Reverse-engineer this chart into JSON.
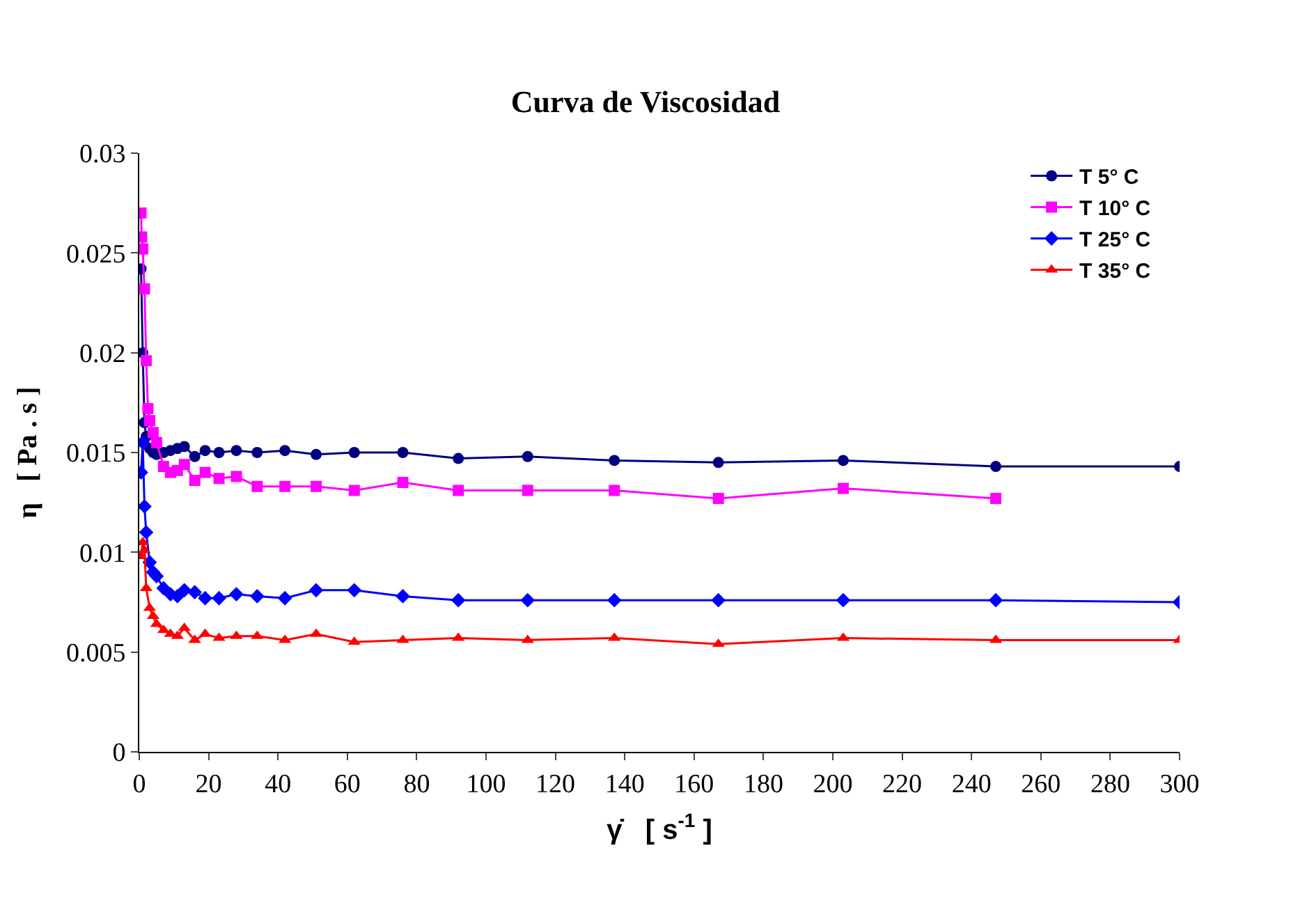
{
  "chart_data": {
    "type": "line",
    "title": "Curva de Viscosidad",
    "xlabel": "γ̇   [ s$^{-1}$ ]",
    "ylabel": "η   [ Pa . s ]",
    "xlim": [
      0,
      300
    ],
    "xticks": [
      0,
      20,
      40,
      60,
      80,
      100,
      120,
      140,
      160,
      180,
      200,
      220,
      240,
      260,
      280,
      300
    ],
    "ylim": [
      0,
      0.03
    ],
    "yticks": [
      0,
      0.005,
      0.01,
      0.015,
      0.02,
      0.025,
      0.03
    ],
    "legend": "top right",
    "line_style": "solid",
    "series": [
      {
        "name": "T 5° C",
        "color": "#000080",
        "marker": "circle",
        "x": [
          0.5,
          1,
          1.5,
          2,
          3,
          4,
          5,
          7,
          9,
          11,
          13,
          16,
          19,
          23,
          28,
          34,
          42,
          51,
          62,
          76,
          92,
          112,
          137,
          167,
          203,
          247,
          300
        ],
        "values": [
          0.0242,
          0.02,
          0.0165,
          0.0158,
          0.0152,
          0.015,
          0.0149,
          0.015,
          0.0151,
          0.0152,
          0.0153,
          0.0148,
          0.0151,
          0.015,
          0.0151,
          0.015,
          0.0151,
          0.0149,
          0.015,
          0.015,
          0.0147,
          0.0148,
          0.0146,
          0.0145,
          0.0146,
          0.0143,
          0.0143
        ]
      },
      {
        "name": "T 10° C",
        "color": "#ff00ff",
        "marker": "square",
        "x": [
          0.5,
          0.7,
          1,
          1.5,
          2,
          2.5,
          3,
          4,
          5,
          7,
          9,
          11,
          13,
          16,
          19,
          23,
          28,
          34,
          42,
          51,
          62,
          76,
          92,
          112,
          137,
          167,
          203,
          247
        ],
        "values": [
          0.027,
          0.0258,
          0.0252,
          0.0232,
          0.0196,
          0.0172,
          0.0166,
          0.016,
          0.0155,
          0.0143,
          0.014,
          0.0141,
          0.0144,
          0.0136,
          0.014,
          0.0137,
          0.0138,
          0.0133,
          0.0133,
          0.0133,
          0.0131,
          0.0135,
          0.0131,
          0.0131,
          0.0131,
          0.0127,
          0.0132,
          0.0127
        ]
      },
      {
        "name": "T 25° C",
        "color": "#0000ff",
        "marker": "diamond",
        "x": [
          0.5,
          1,
          1.5,
          2,
          3,
          4,
          5,
          7,
          9,
          11,
          13,
          16,
          19,
          23,
          28,
          34,
          42,
          51,
          62,
          76,
          92,
          112,
          137,
          167,
          203,
          247,
          300
        ],
        "values": [
          0.014,
          0.0155,
          0.0123,
          0.011,
          0.0095,
          0.009,
          0.0088,
          0.0082,
          0.0079,
          0.0078,
          0.0081,
          0.008,
          0.0077,
          0.0077,
          0.0079,
          0.0078,
          0.0077,
          0.0081,
          0.0081,
          0.0078,
          0.0076,
          0.0076,
          0.0076,
          0.0076,
          0.0076,
          0.0076,
          0.0075
        ]
      },
      {
        "name": "T 35° C",
        "color": "#ff0000",
        "marker": "triangle",
        "x": [
          0.5,
          1,
          1.5,
          2,
          3,
          4,
          5,
          7,
          9,
          11,
          13,
          16,
          19,
          23,
          28,
          34,
          42,
          51,
          62,
          76,
          92,
          112,
          137,
          167,
          203,
          247,
          300
        ],
        "values": [
          0.0098,
          0.0105,
          0.0101,
          0.0082,
          0.0072,
          0.0068,
          0.0064,
          0.0061,
          0.0059,
          0.0058,
          0.0062,
          0.0056,
          0.0059,
          0.0057,
          0.0058,
          0.0058,
          0.0056,
          0.0059,
          0.0055,
          0.0056,
          0.0057,
          0.0056,
          0.0057,
          0.0054,
          0.0057,
          0.0056,
          0.0056
        ]
      }
    ]
  }
}
